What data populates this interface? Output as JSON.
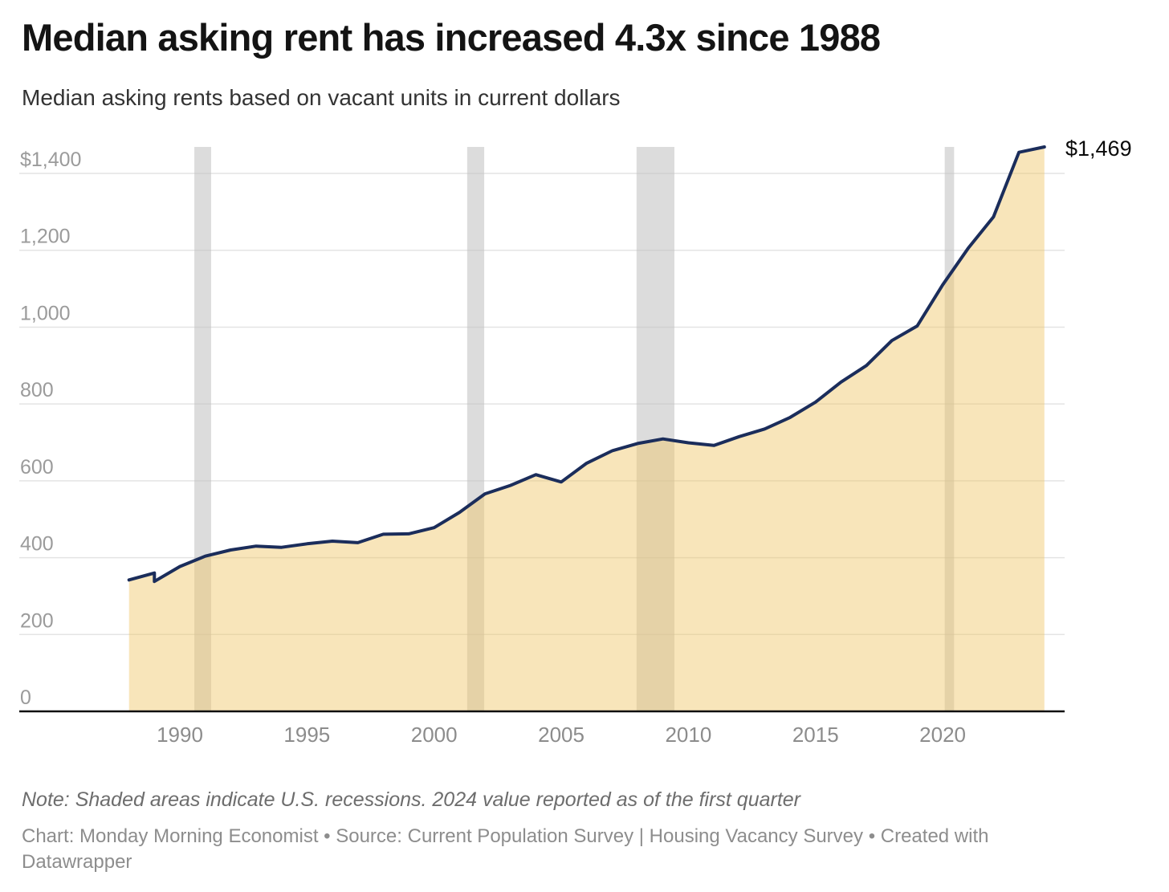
{
  "header": {
    "title": "Median asking rent has increased 4.3x since 1988",
    "subtitle": "Median asking rents based on vacant units in current dollars"
  },
  "footer": {
    "note": "Note: Shaded areas indicate U.S. recessions. 2024 value reported as of the first quarter",
    "credits": "Chart: Monday Morning Economist • Source: Current Population Survey | Housing Vacancy Survey • Created with Datawrapper"
  },
  "chart_data": {
    "type": "area",
    "title": "Median asking rent has increased 4.3x since 1988",
    "subtitle": "Median asking rents based on vacant units in current dollars",
    "unit": "current US dollars per month",
    "xlabel": "",
    "ylabel": "",
    "xlim": [
      1988,
      2024.1
    ],
    "ylim": [
      0,
      1469
    ],
    "grid": "horizontal",
    "legend": "none",
    "points": [
      [
        1988,
        342
      ],
      [
        1989,
        360
      ],
      [
        1989,
        338
      ],
      [
        1990,
        377
      ],
      [
        1991,
        404
      ],
      [
        1992,
        420
      ],
      [
        1993,
        430
      ],
      [
        1994,
        427
      ],
      [
        1995,
        436
      ],
      [
        1996,
        443
      ],
      [
        1997,
        439
      ],
      [
        1998,
        461
      ],
      [
        1999,
        462
      ],
      [
        2000,
        478
      ],
      [
        2001,
        518
      ],
      [
        2002,
        566
      ],
      [
        2003,
        588
      ],
      [
        2004,
        616
      ],
      [
        2005,
        597
      ],
      [
        2006,
        646
      ],
      [
        2007,
        678
      ],
      [
        2008,
        697
      ],
      [
        2009,
        709
      ],
      [
        2010,
        699
      ],
      [
        2011,
        692
      ],
      [
        2012,
        715
      ],
      [
        2013,
        735
      ],
      [
        2014,
        765
      ],
      [
        2015,
        805
      ],
      [
        2016,
        857
      ],
      [
        2017,
        900
      ],
      [
        2018,
        965
      ],
      [
        2019,
        1003
      ],
      [
        2020,
        1110
      ],
      [
        2021,
        1205
      ],
      [
        2022,
        1287
      ],
      [
        2023,
        1455
      ],
      [
        2024,
        1469
      ]
    ],
    "series_note": "1989 appears twice: a small data break is drawn as a vertical step in the line",
    "end_label": "$1,469",
    "y_ticks": [
      {
        "value": 0,
        "label": "0"
      },
      {
        "value": 200,
        "label": "200"
      },
      {
        "value": 400,
        "label": "400"
      },
      {
        "value": 600,
        "label": "600"
      },
      {
        "value": 800,
        "label": "800"
      },
      {
        "value": 1000,
        "label": "1,000"
      },
      {
        "value": 1200,
        "label": "1,200"
      },
      {
        "value": 1400,
        "label": "$1,400"
      }
    ],
    "x_ticks": [
      {
        "value": 1990,
        "label": "1990"
      },
      {
        "value": 1995,
        "label": "1995"
      },
      {
        "value": 2000,
        "label": "2000"
      },
      {
        "value": 2005,
        "label": "2005"
      },
      {
        "value": 2010,
        "label": "2010"
      },
      {
        "value": 2015,
        "label": "2015"
      },
      {
        "value": 2020,
        "label": "2020"
      }
    ],
    "recessions": [
      [
        1990.57,
        1991.23
      ],
      [
        2001.3,
        2001.97
      ],
      [
        2007.96,
        2009.45
      ],
      [
        2020.08,
        2020.45
      ]
    ],
    "colors": {
      "line": "#1b2d5b",
      "area_fill": "#efc566",
      "area_fill_opacity": 0.45,
      "recession_band": "#bfbfbf",
      "recession_band_opacity": 0.55,
      "gridline": "#e4e4e4",
      "axis_line": "#0f0f0f",
      "y_tick_text": "#9b9b9b",
      "x_tick_text": "#8c8c8c",
      "end_label_text": "#0a0a0a"
    }
  }
}
